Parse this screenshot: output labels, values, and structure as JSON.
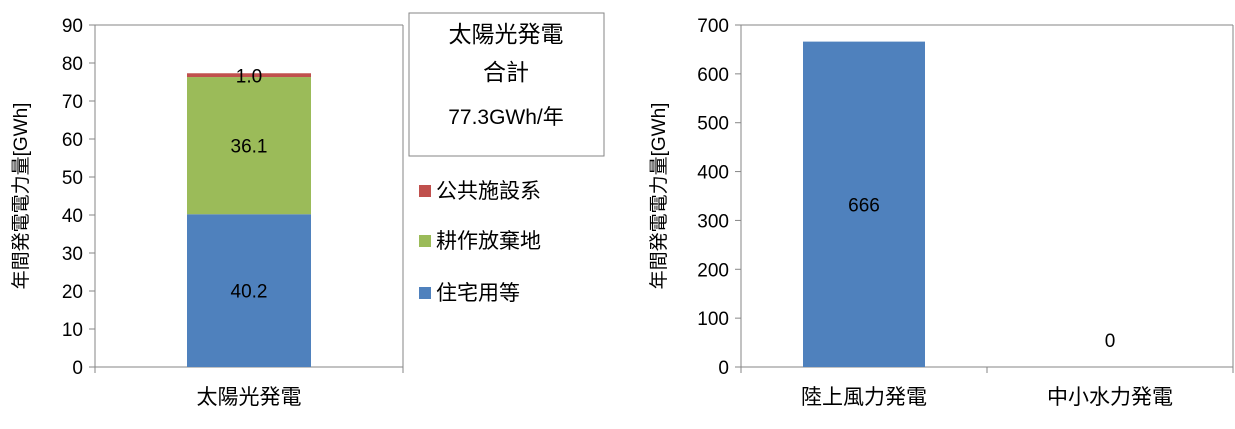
{
  "chart_data": [
    {
      "type": "bar",
      "stacked": true,
      "categories": [
        "太陽光発電"
      ],
      "series": [
        {
          "name": "住宅用等",
          "values": [
            40.2
          ],
          "color": "#4f81bd"
        },
        {
          "name": "耕作放棄地",
          "values": [
            36.1
          ],
          "color": "#9bbb59"
        },
        {
          "name": "公共施設系",
          "values": [
            1.0
          ],
          "color": "#c0504d"
        }
      ],
      "data_labels": [
        "40.2",
        "36.1",
        "1.0"
      ],
      "ylabel": "年間発電電力量[GWh]",
      "ylim": [
        0,
        90
      ],
      "yticks": [
        0,
        10,
        20,
        30,
        40,
        50,
        60,
        70,
        80,
        90
      ],
      "grid": false,
      "legend_position": "right",
      "annotation_box": {
        "line1": "太陽光発電",
        "line2": "合計",
        "line3": "77.3GWh/年"
      }
    },
    {
      "type": "bar",
      "categories": [
        "陸上風力発電",
        "中小水力発電"
      ],
      "values": [
        666,
        0
      ],
      "data_labels": [
        "666",
        "0"
      ],
      "color": "#4f81bd",
      "ylabel": "年間発電電力量[GWh]",
      "ylim": [
        0,
        700
      ],
      "yticks": [
        0,
        100,
        200,
        300,
        400,
        500,
        600,
        700
      ],
      "grid": false
    }
  ]
}
